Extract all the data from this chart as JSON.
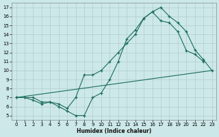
{
  "bg_color": "#cce8e8",
  "grid_color": "#b0cccc",
  "line_color": "#1a6b5a",
  "xlabel": "Humidex (Indice chaleur)",
  "xlim": [
    -0.5,
    23.5
  ],
  "ylim": [
    4.5,
    17.5
  ],
  "xticks": [
    0,
    1,
    2,
    3,
    4,
    5,
    6,
    7,
    8,
    9,
    10,
    11,
    12,
    13,
    14,
    15,
    16,
    17,
    18,
    19,
    20,
    21,
    22,
    23
  ],
  "yticks": [
    5,
    6,
    7,
    8,
    9,
    10,
    11,
    12,
    13,
    14,
    15,
    16,
    17
  ],
  "line1_x": [
    0,
    1,
    2,
    3,
    4,
    5,
    6,
    7,
    8,
    9,
    10,
    11,
    12,
    13,
    14,
    15,
    16,
    17,
    18,
    19,
    20,
    21,
    22,
    23
  ],
  "line1_y": [
    7,
    7,
    7,
    6.5,
    6.5,
    6,
    5.5,
    5,
    5,
    7,
    7.5,
    9,
    11,
    13.5,
    14.5,
    15.8,
    16.5,
    17,
    16,
    15.3,
    14.3,
    12.3,
    11.2,
    10
  ],
  "line2_x": [
    0,
    1,
    2,
    3,
    4,
    5,
    6,
    7,
    8,
    9,
    10,
    11,
    12,
    13,
    14,
    15,
    16,
    17,
    18,
    19,
    20,
    21,
    22
  ],
  "line2_y": [
    7,
    7,
    6.7,
    6.3,
    6.5,
    6.3,
    5.8,
    7,
    9.5,
    9.5,
    10,
    11,
    12,
    13,
    14,
    15.8,
    16.5,
    15.5,
    15.3,
    14.3,
    12.2,
    11.8,
    11
  ],
  "line3_x": [
    0,
    23
  ],
  "line3_y": [
    7,
    10
  ]
}
